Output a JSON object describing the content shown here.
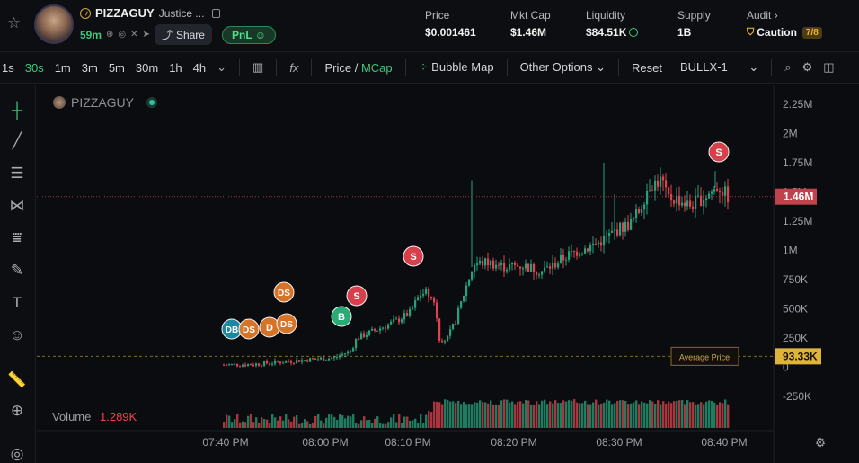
{
  "header": {
    "token_symbol": "PIZZAGUY",
    "token_fullname": "Justice ...",
    "age": "59m",
    "share_label": "Share",
    "pnl_label": "PnL",
    "stats": [
      {
        "label": "Price",
        "value": "$0.001461"
      },
      {
        "label": "Mkt Cap",
        "value": "$1.46M"
      },
      {
        "label": "Liquidity",
        "value": "$84.51K"
      },
      {
        "label": "Supply",
        "value": "1B"
      }
    ],
    "audit_label": "Audit",
    "audit_value": "Caution",
    "audit_badge": "7/8"
  },
  "toolbar": {
    "intervals": [
      "1s",
      "30s",
      "1m",
      "3m",
      "5m",
      "30m",
      "1h",
      "4h"
    ],
    "active_interval": "30s",
    "price_label": "Price",
    "slash": "/",
    "mcap_label": "MCap",
    "bubble_map_label": "Bubble Map",
    "other_options_label": "Other Options",
    "reset_label": "Reset",
    "bullx_label": "BULLX-1",
    "fx_label": "fx"
  },
  "legend": {
    "name": "PIZZAGUY"
  },
  "volume": {
    "label": "Volume",
    "value": "1.289K"
  },
  "chart_data": {
    "type": "candlestick",
    "y_ticks": [
      "2.25M",
      "2M",
      "1.75M",
      "1.5M",
      "1.25M",
      "1M",
      "750K",
      "500K",
      "250K",
      "0",
      "-250K"
    ],
    "ylim": [
      -250000,
      2250000
    ],
    "x_ticks": [
      "07:40 PM",
      "08:00 PM",
      "08:10 PM",
      "08:20 PM",
      "08:30 PM",
      "08:40 PM"
    ],
    "current_value_label": "1.46M",
    "current_value": 1460000,
    "average_price_label": "Average Price",
    "average_value_label": "93.33K",
    "average_value": 93330,
    "trade_markers": [
      "DB",
      "DS",
      "D",
      "DS",
      "DS",
      "B",
      "S",
      "S",
      "S"
    ],
    "colors": {
      "up": "#26a17b",
      "down": "#e0434f",
      "accent": "#f0b92b"
    }
  }
}
